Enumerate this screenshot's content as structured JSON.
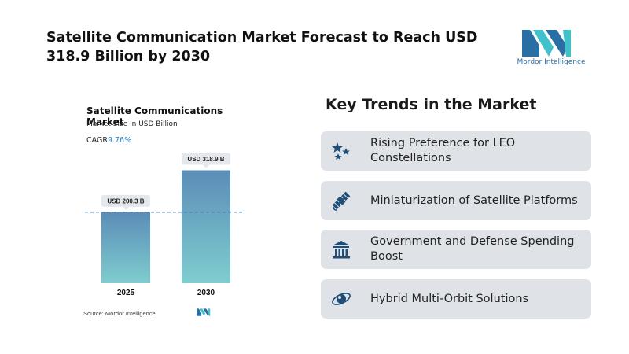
{
  "headline": "Satellite Communication Market Forecast to Reach USD 318.9 Billion by 2030",
  "brand": {
    "name": "Mordor Intelligence",
    "color": "#2a6fa3",
    "accent": "#41c1c9"
  },
  "chart": {
    "title": "Satellite Communications Market",
    "subtitle": "Market Size in USD Billion",
    "cagr_label": "CAGR",
    "cagr_value": "9.76%",
    "source": "Source: Mordor Intelligence"
  },
  "chart_data": {
    "type": "bar",
    "title": "Satellite Communications Market",
    "ylabel": "Market Size in USD Billion",
    "categories": [
      "2025",
      "2030"
    ],
    "values": [
      200.3,
      318.9
    ],
    "data_labels": [
      "USD 200.3 B",
      "USD 318.9 B"
    ],
    "ylim": [
      0,
      360
    ],
    "reference_line": 200.3,
    "grid": false,
    "bar_gradient": [
      "#5b8db8",
      "#7fcdcf"
    ]
  },
  "trends": {
    "title": "Key Trends in the Market",
    "items": [
      {
        "label": "Rising Preference for LEO Constellations",
        "icon": "stars-icon"
      },
      {
        "label": "Miniaturization of Satellite Platforms",
        "icon": "satellite-icon"
      },
      {
        "label": "Government and Defense Spending Boost",
        "icon": "government-building-icon"
      },
      {
        "label": "Hybrid Multi-Orbit Solutions",
        "icon": "orbit-icon"
      }
    ]
  },
  "colors": {
    "icon_bg": "#1f4e79",
    "card_bg": "#dfe3e8"
  }
}
